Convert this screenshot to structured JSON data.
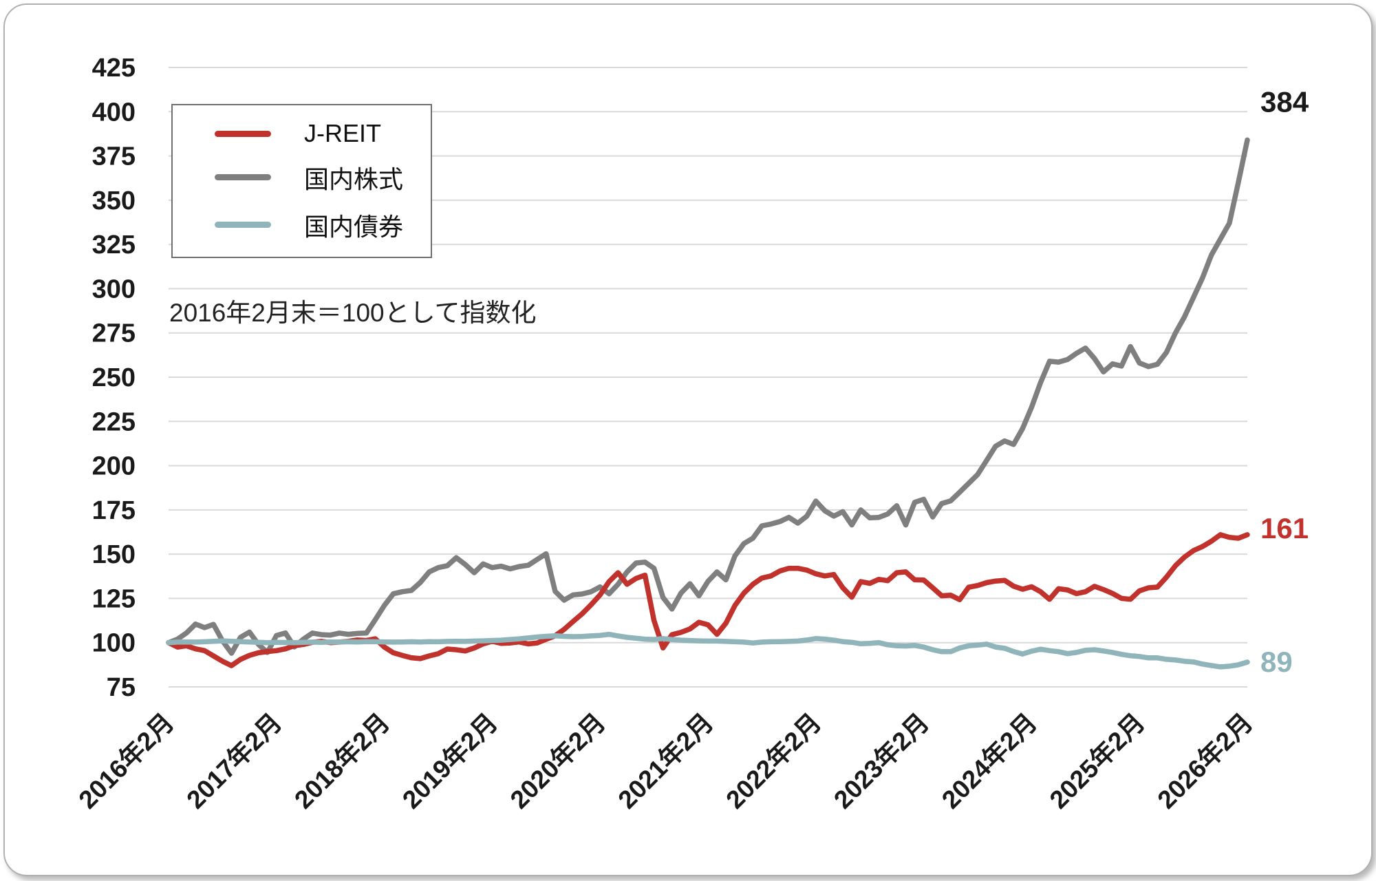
{
  "annotation": "2016年2月末＝100として指数化",
  "legend": {
    "items": [
      {
        "label": "J-REIT",
        "color": "#c0322b"
      },
      {
        "label": "国内株式",
        "color": "#7f7f7f"
      },
      {
        "label": "国内債券",
        "color": "#8fb5bb"
      }
    ]
  },
  "colors": {
    "gridline": "#d9d9d9",
    "axis_text": "#1a1a1a",
    "jreit_red": "#c0322b",
    "stock_gray": "#7f7f7f",
    "bond_teal": "#8fb5bb"
  },
  "chart_data": {
    "type": "line",
    "title": "",
    "xlabel": "",
    "ylabel": "",
    "x_description": "月次データ: 2016年2月〜2026年2月 (121点)",
    "x_tick_labels": [
      "2016年2月",
      "2017年2月",
      "2018年2月",
      "2019年2月",
      "2020年2月",
      "2021年2月",
      "2022年2月",
      "2023年2月",
      "2024年2月",
      "2025年2月",
      "2026年2月"
    ],
    "ylim": [
      75,
      425
    ],
    "y_tick_step": 25,
    "grid": true,
    "legend_position": "top-left",
    "series": [
      {
        "name": "J-REIT",
        "color": "#c0322b",
        "end_label": "161",
        "end_label_color": "#c0322b",
        "values": [
          100,
          97.5,
          98.2,
          96.5,
          95.5,
          92.5,
          89.5,
          87,
          90.5,
          92.8,
          94.3,
          95,
          95.5,
          96.5,
          98.3,
          99,
          100.2,
          100.8,
          100,
          100.3,
          100.8,
          101.5,
          101.2,
          102.2,
          97.5,
          94.3,
          92.8,
          91.5,
          91,
          92.5,
          93.8,
          96.4,
          96,
          95.3,
          97,
          99.3,
          100.8,
          99.6,
          99.8,
          100.4,
          99.3,
          99.8,
          101.9,
          103.9,
          107.5,
          112,
          116.3,
          121.4,
          127,
          134.5,
          139.5,
          133,
          136.3,
          138.1,
          112.5,
          97,
          104.5,
          105.8,
          107.8,
          111.5,
          110.1,
          104.7,
          111,
          121,
          128,
          133,
          136.5,
          137.7,
          140.5,
          142,
          142,
          141,
          138.9,
          137.7,
          138.5,
          131,
          125.7,
          134.5,
          133.5,
          135.8,
          135,
          139.5,
          140,
          135.5,
          135.4,
          131,
          126.5,
          126.8,
          124.3,
          131.3,
          132.3,
          133.9,
          134.8,
          135.2,
          131.9,
          130.2,
          131.6,
          128.8,
          124.5,
          130.5,
          129.8,
          127.7,
          128.8,
          131.8,
          130,
          127.8,
          125,
          124.5,
          129.3,
          131,
          131.4,
          137,
          143.5,
          148.3,
          152,
          154.3,
          157.3,
          161,
          159.5,
          159,
          161
        ]
      },
      {
        "name": "国内株式",
        "color": "#7f7f7f",
        "end_label": "384",
        "end_label_color": "#1a1a1a",
        "values": [
          100,
          102,
          105.5,
          110.5,
          108.5,
          110.3,
          101,
          94,
          103,
          106,
          99,
          94.5,
          104,
          105.5,
          97.6,
          102,
          105.4,
          104.5,
          104.3,
          105.4,
          104.7,
          105.2,
          105.4,
          113,
          121,
          127.6,
          128.8,
          129.5,
          134,
          140,
          142.4,
          143.5,
          148,
          144.2,
          139.5,
          144.5,
          142.4,
          143.2,
          141.7,
          143,
          143.7,
          147,
          150.2,
          129,
          124,
          127,
          127.5,
          128.8,
          131.5,
          127.6,
          133,
          140,
          145,
          145.5,
          142,
          125.5,
          119,
          128,
          133.3,
          126.5,
          134.6,
          140,
          135.5,
          149,
          156,
          159,
          166,
          167,
          168.4,
          170.8,
          167.5,
          171.5,
          180,
          174.5,
          171.5,
          174,
          166.5,
          175,
          170.5,
          170.8,
          172.7,
          177.4,
          166.5,
          179.3,
          181,
          171,
          178.6,
          180.1,
          185,
          190,
          195,
          203,
          211,
          214,
          212,
          221,
          233,
          247,
          259,
          258.5,
          260,
          263.5,
          266.4,
          260.5,
          253,
          257.5,
          256.3,
          267.3,
          258,
          256,
          257.3,
          264,
          275,
          284,
          295,
          306,
          319,
          328,
          337,
          360,
          384
        ]
      },
      {
        "name": "国内債券",
        "color": "#8fb5bb",
        "end_label": "89",
        "end_label_color": "#8fb5bb",
        "values": [
          100,
          100.3,
          100.4,
          100.3,
          100.5,
          100.8,
          101,
          100.8,
          100.6,
          100.4,
          100.2,
          100,
          100.2,
          100.1,
          100,
          100.2,
          100.3,
          100.2,
          100.4,
          100.3,
          100.5,
          100.4,
          100.6,
          100.5,
          100.4,
          100.3,
          100.4,
          100.5,
          100.4,
          100.6,
          100.5,
          100.7,
          100.8,
          100.7,
          100.9,
          101,
          101.2,
          101.4,
          101.8,
          102.2,
          102.7,
          103.2,
          103.6,
          103.9,
          103.6,
          103.4,
          103.5,
          103.8,
          104.1,
          104.7,
          103.8,
          103,
          102.5,
          102,
          101.8,
          102.3,
          101.8,
          101.4,
          101.2,
          101,
          100.9,
          100.9,
          100.7,
          100.5,
          100.3,
          99.8,
          100.3,
          100.5,
          100.6,
          100.7,
          100.9,
          101.5,
          102.3,
          102,
          101.4,
          100.6,
          100.2,
          99.4,
          99.6,
          100,
          98.8,
          98.2,
          98.1,
          98.4,
          97.5,
          96,
          94.9,
          94.9,
          97,
          98.2,
          98.6,
          99.2,
          97.5,
          96.8,
          95,
          93.6,
          95.2,
          96.3,
          95.5,
          94.9,
          93.8,
          94.5,
          95.7,
          96,
          95.3,
          94.5,
          93.4,
          92.6,
          92.2,
          91.4,
          91.4,
          90.6,
          90.2,
          89.5,
          89.1,
          87.9,
          87.1,
          86.3,
          86.7,
          87.5,
          89
        ]
      }
    ]
  }
}
